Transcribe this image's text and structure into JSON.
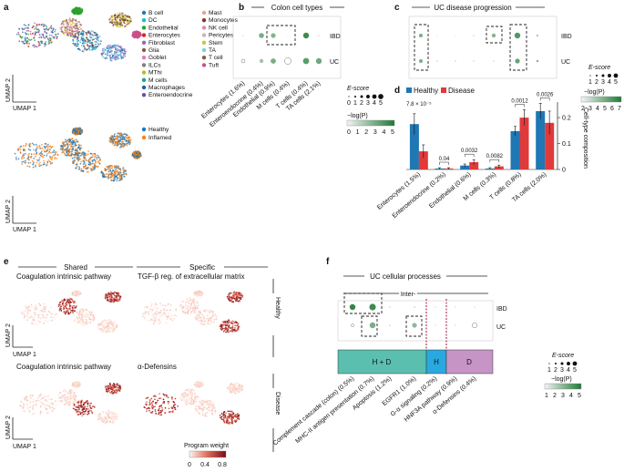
{
  "panels": {
    "a": {
      "label": "a",
      "legend1": [
        "B cell",
        "DC",
        "Endothelial",
        "Enterocytes",
        "Fibroblast",
        "Glia",
        "Goblet",
        "ILCs",
        "MThi",
        "M cells",
        "Macrophages",
        "Enteroendocrine",
        "Mast",
        "Monocytes",
        "NK cell",
        "Pericytes",
        "Stem",
        "TA",
        "T cell",
        "Tuft"
      ],
      "legend1_colors": [
        "#1f77b4",
        "#17becf",
        "#2ca02c",
        "#d62728",
        "#9467bd",
        "#8c564b",
        "#e377c2",
        "#7f7f7f",
        "#bcbd22",
        "#17a589",
        "#1f5fa8",
        "#6b4ea2",
        "#e6a0a0",
        "#7a3b2e",
        "#d98cb3",
        "#bbbbbb",
        "#c7c73d",
        "#7ad0dd",
        "#8b5a4a",
        "#c8508a"
      ],
      "legend2": [
        "Healthy",
        "Inflamed"
      ],
      "legend2_colors": [
        "#1f77b4",
        "#ff7f0e"
      ],
      "axis_y": "UMAP 2",
      "axis_x": "UMAP 1"
    },
    "b": {
      "label": "b",
      "title": "Colon cell types",
      "rows": [
        "IBD",
        "UC"
      ],
      "cols": [
        "Enterocytes (1.6%)",
        "Enteroendocrine (0.4%)",
        "Endothelial (0.9%)",
        "M cells (0.4%)",
        "T cells (0.4%)",
        "TA cells (2.1%)"
      ]
    },
    "escore_legend_b": {
      "title": "E-score",
      "sizes": [
        "0",
        "1",
        "2",
        "3",
        "4",
        "5"
      ],
      "logp_title": "−log(P)",
      "logp_ticks": [
        "0",
        "1",
        "2",
        "3",
        "4",
        "5"
      ]
    },
    "c": {
      "label": "c",
      "title": "UC disease progression",
      "rows": [
        "IBD",
        "UC"
      ]
    },
    "escore_legend_c": {
      "title": "E-score",
      "sizes": [
        "1",
        "2",
        "3",
        "4",
        "5"
      ],
      "logp_title": "−log(P)",
      "logp_ticks": [
        "2",
        "3",
        "4",
        "5",
        "6",
        "7"
      ]
    },
    "d": {
      "label": "d",
      "legend": [
        "Healthy",
        "Disease"
      ],
      "legend_colors": [
        "#1f77b4",
        "#e03a3a"
      ],
      "ylabel": "Cell-type composition",
      "pvals": [
        "7.8 × 10⁻⁵",
        "0.04",
        "0.0032",
        "0.0082",
        "0.0012",
        "0.0026"
      ]
    },
    "e": {
      "label": "e",
      "shared_header": "Shared",
      "specific_header": "Specific",
      "titles": [
        "Coagulation intrinsic pathway",
        "TGF-β reg. of extracellular matrix",
        "Coagulation intrinsic pathway",
        "α-Defensins"
      ],
      "row_labels": [
        "Healthy",
        "Disease"
      ],
      "axis_y": "UMAP 2",
      "axis_x": "UMAP 1",
      "colorbar_title": "Program weight",
      "colorbar_ticks": [
        "0",
        "0.4",
        "0.8"
      ]
    },
    "f": {
      "label": "f",
      "title": "UC cellular processes",
      "inter_label": "Inter-",
      "rows": [
        "IBD",
        "UC"
      ],
      "groups": [
        "H + D",
        "H",
        "D"
      ],
      "group_colors": [
        "#5bbfb0",
        "#29a9e0",
        "#c794c6"
      ],
      "cols": [
        "Complement cascade (colon) (0.5%)",
        "MHC-II antigen presentation (0.7%)",
        "Apoptosis (1.2%)",
        "EGFR1 (1.0%)",
        "G-α signaling (0.2%)",
        "HNF3A pathway (0.9%)",
        "α-Defensins (0.4%)"
      ]
    },
    "escore_legend_f": {
      "title": "E-score",
      "sizes": [
        "1",
        "2",
        "3",
        "4",
        "5"
      ],
      "logp_title": "−log(P)",
      "logp_ticks": [
        "1",
        "2",
        "3",
        "4",
        "5"
      ]
    }
  },
  "chart_data": [
    {
      "type": "bar",
      "title": "Cell-type composition (panel d)",
      "categories": [
        "Enterocytes (1.5%)",
        "Enteroendocrine (0.2%)",
        "Endothelial (0.6%)",
        "M cells (0.3%)",
        "T cells (0.8%)",
        "TA cells (2.0%)"
      ],
      "series": [
        {
          "name": "Healthy",
          "values": [
            0.175,
            0.004,
            0.015,
            0.004,
            0.148,
            0.225
          ],
          "errors": [
            0.04,
            0.003,
            0.006,
            0.003,
            0.018,
            0.03
          ]
        },
        {
          "name": "Disease",
          "values": [
            0.07,
            0.004,
            0.028,
            0.012,
            0.2,
            0.18
          ],
          "errors": [
            0.025,
            0.003,
            0.01,
            0.005,
            0.03,
            0.045
          ]
        }
      ],
      "ylabel": "Cell-type composition",
      "yticks": [
        0,
        0.1,
        0.2
      ],
      "ylim": [
        0,
        0.26
      ]
    }
  ]
}
